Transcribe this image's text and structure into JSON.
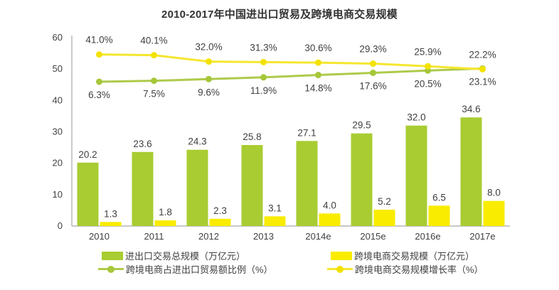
{
  "chart_data": {
    "type": "combo",
    "title": "2010-2017年中国进出口贸易及跨境电商交易规模",
    "categories": [
      "2010",
      "2011",
      "2012",
      "2013",
      "2014e",
      "2015e",
      "2016e",
      "2017e"
    ],
    "y_axis": {
      "min": 0,
      "max": 60,
      "step": 10,
      "ticks": [
        "0",
        "10",
        "20",
        "30",
        "40",
        "50",
        "60"
      ]
    },
    "grid": false,
    "legend_position": "bottom",
    "text_color": "#404040",
    "axis_color": "#a6a6a6",
    "series": [
      {
        "name": "进出口交易总规模（万亿元）",
        "type": "bar",
        "color": "#a9cc32",
        "values": [
          20.2,
          23.6,
          24.3,
          25.8,
          27.1,
          29.5,
          32.0,
          34.6
        ],
        "labels": [
          "20.2",
          "23.6",
          "24.3",
          "25.8",
          "27.1",
          "29.5",
          "32.0",
          "34.6"
        ]
      },
      {
        "name": "跨境电商交易规模（万亿元）",
        "type": "bar",
        "color": "#f9ec00",
        "values": [
          1.3,
          1.8,
          2.3,
          3.1,
          4.0,
          5.2,
          6.5,
          8.0
        ],
        "labels": [
          "1.3",
          "1.8",
          "2.3",
          "3.1",
          "4.0",
          "5.2",
          "6.5",
          "8.0"
        ]
      },
      {
        "name": "跨境电商占进出口贸易额比例（%）",
        "type": "line",
        "color": "#a6c739",
        "line_color": "#aeca4a",
        "values": [
          6.3,
          7.5,
          9.6,
          11.9,
          14.8,
          17.6,
          20.5,
          23.1
        ],
        "labels": [
          "6.3%",
          "7.5%",
          "9.6%",
          "11.9%",
          "14.8%",
          "17.6%",
          "20.5%",
          "23.1%"
        ],
        "label_position": "below"
      },
      {
        "name": "跨境电商交易规模增长率（%）",
        "type": "line",
        "color": "#f3e200",
        "line_color": "#f5e62e",
        "values": [
          41.0,
          40.1,
          32.0,
          31.3,
          30.6,
          29.3,
          25.9,
          22.2
        ],
        "labels": [
          "41.0%",
          "40.1%",
          "32.0%",
          "31.3%",
          "30.6%",
          "29.3%",
          "25.9%",
          "22.2%"
        ],
        "label_position": "above"
      }
    ]
  }
}
